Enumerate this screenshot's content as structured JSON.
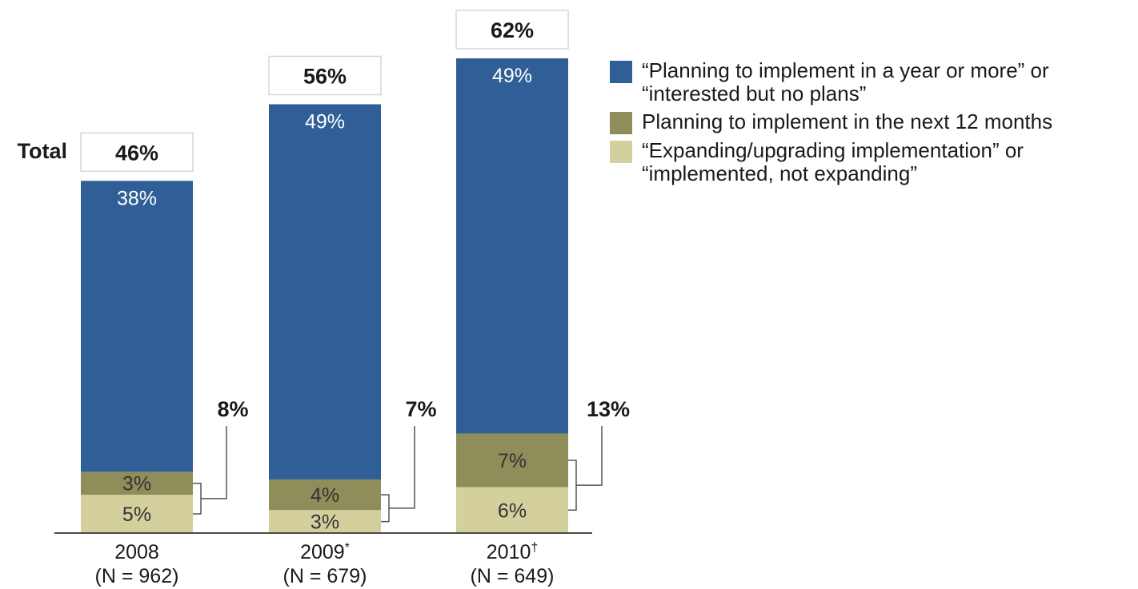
{
  "chart_data": {
    "type": "bar",
    "stacked": true,
    "total_label": "Total",
    "ylim": [
      0,
      70
    ],
    "categories": [
      {
        "year": "2008",
        "marker": "",
        "n": "(N = 962)"
      },
      {
        "year": "2009",
        "marker": "*",
        "n": "(N = 679)"
      },
      {
        "year": "2010",
        "marker": "†",
        "n": "(N = 649)"
      }
    ],
    "series": [
      {
        "name": "“Expanding/upgrading implementation” or “implemented, not expanding”",
        "values": [
          5,
          3,
          6
        ],
        "labels": [
          "5%",
          "3%",
          "6%"
        ],
        "color": "#d3d09e",
        "label_color": "#333333"
      },
      {
        "name": "Planning to implement in the next 12 months",
        "values": [
          3,
          4,
          7
        ],
        "labels": [
          "3%",
          "4%",
          "7%"
        ],
        "color": "#8f8d5a",
        "label_color": "#333333"
      },
      {
        "name": "“Planning to implement in a year or more” or “interested but no plans”",
        "values": [
          38,
          49,
          49
        ],
        "labels": [
          "38%",
          "49%",
          "49%"
        ],
        "color": "#2f5f96",
        "label_color": "#ffffff"
      }
    ],
    "totals": [
      "46%",
      "56%",
      "62%"
    ],
    "subtotals": [
      "8%",
      "7%",
      "13%"
    ]
  },
  "legend": [
    {
      "lines": [
        "“Planning to implement in a year or more” or",
        "“interested but no plans”"
      ],
      "color": "#2f5f96"
    },
    {
      "lines": [
        "Planning to implement in the next 12 months"
      ],
      "color": "#8f8d5a"
    },
    {
      "lines": [
        "“Expanding/upgrading implementation” or",
        "“implemented, not expanding”"
      ],
      "color": "#d3d09e"
    }
  ]
}
